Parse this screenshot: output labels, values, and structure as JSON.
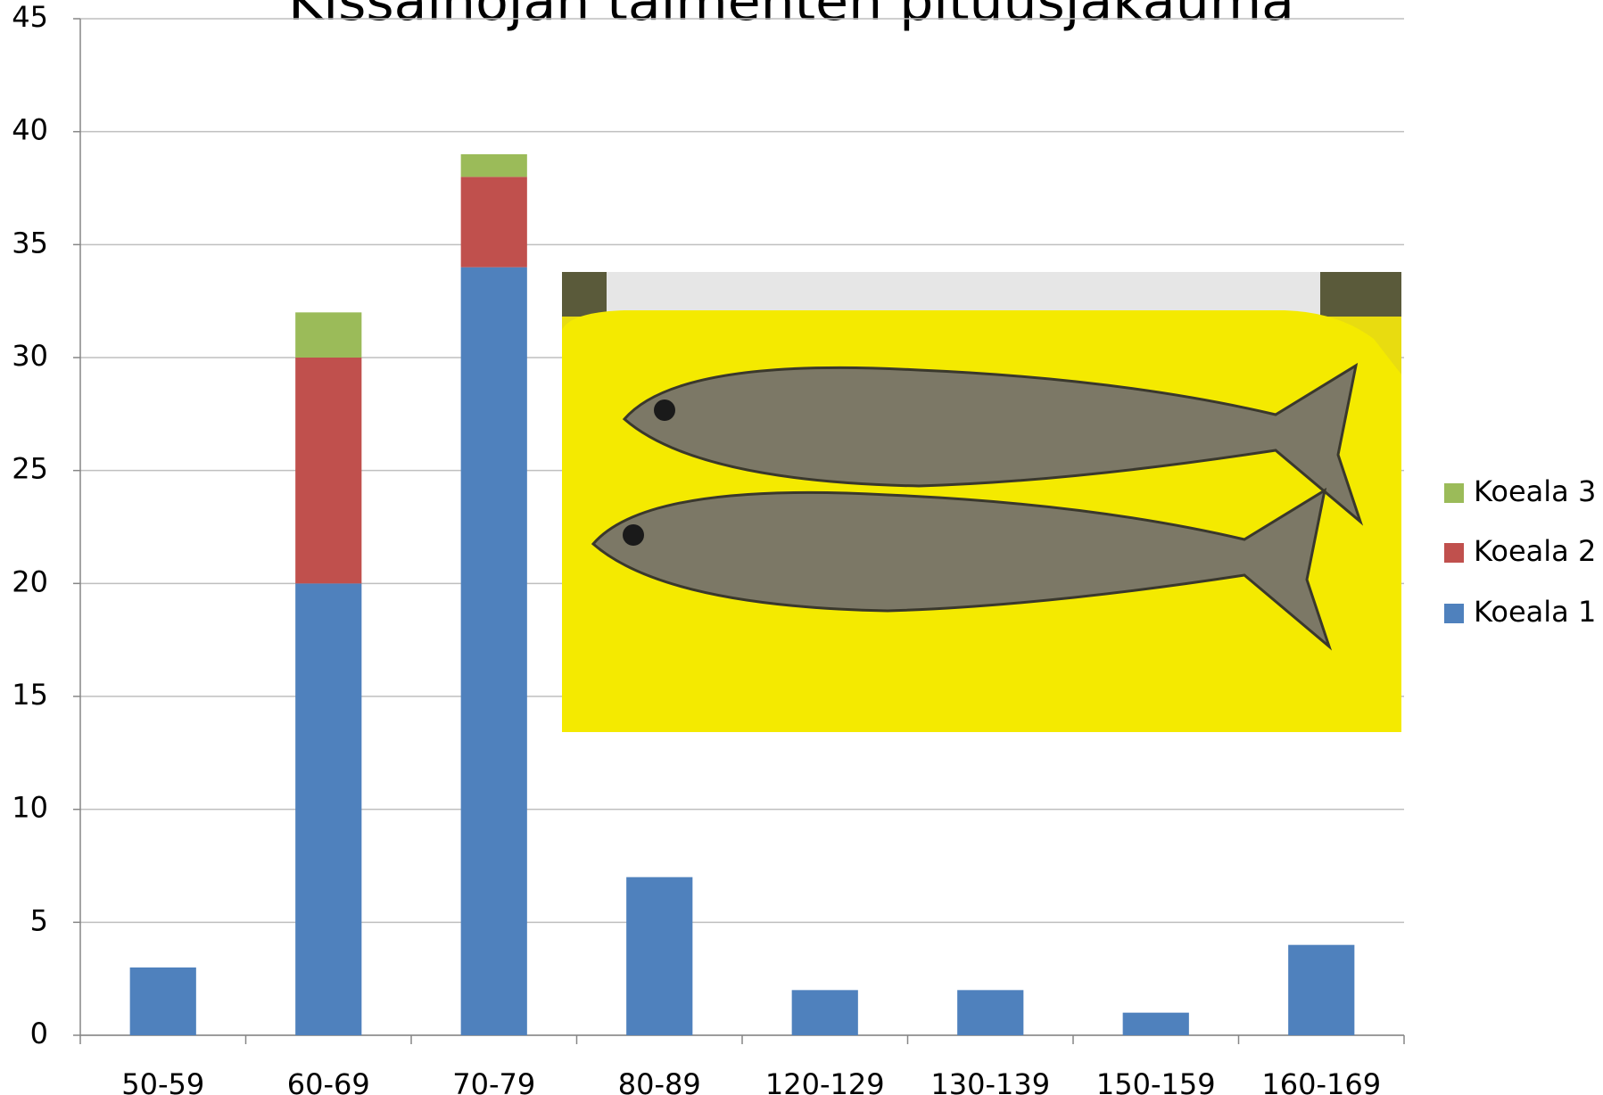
{
  "chart_data": {
    "type": "stacked_bar",
    "title": "Kissainojan taimenten pituusjakauma",
    "categories": [
      "50-59",
      "60-69",
      "70-79",
      "80-89",
      "120-129",
      "130-139",
      "150-159",
      "160-169"
    ],
    "series": [
      {
        "name": "Koeala 1",
        "color": "#4f81bd",
        "values": [
          3,
          20,
          34,
          7,
          2,
          2,
          1,
          4
        ]
      },
      {
        "name": "Koeala 2",
        "color": "#c0504d",
        "values": [
          0,
          10,
          4,
          0,
          0,
          0,
          0,
          0
        ]
      },
      {
        "name": "Koeala 3",
        "color": "#9bbb59",
        "values": [
          0,
          2,
          1,
          0,
          0,
          0,
          0,
          0
        ]
      }
    ],
    "ylim": [
      0,
      45
    ],
    "yticks": [
      0,
      5,
      10,
      15,
      20,
      25,
      30,
      35,
      40,
      45
    ],
    "grid": true,
    "legend": "right"
  }
}
